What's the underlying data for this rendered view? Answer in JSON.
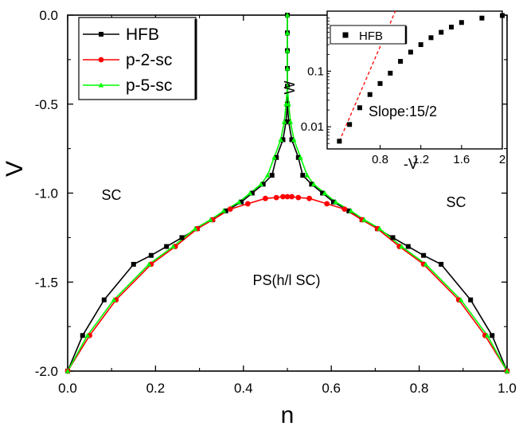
{
  "chart_data": [
    {
      "type": "line",
      "xlabel": "n",
      "ylabel": "V",
      "xlim": [
        0.0,
        1.0
      ],
      "ylim": [
        -2.0,
        0.0
      ],
      "x_ticks": [
        0.0,
        0.2,
        0.4,
        0.6,
        0.8,
        1.0
      ],
      "x_tick_labels": [
        "0.0",
        "0.2",
        "0.4",
        "0.6",
        "0.8",
        "1.0"
      ],
      "y_ticks": [
        0.0,
        -0.5,
        -1.0,
        -1.5,
        -2.0
      ],
      "y_tick_labels": [
        "0.0",
        "-0.5",
        "-1.0",
        "-1.5",
        "-2.0"
      ],
      "grid": false,
      "legend_position": "top-left",
      "annotations": [
        "SC",
        "SC",
        "PS(h/l SC)"
      ],
      "series": [
        {
          "name": "HFB",
          "color": "#000000",
          "marker": "square",
          "points": [
            [
              0.0,
              -2.0
            ],
            [
              0.034,
              -1.8
            ],
            [
              0.083,
              -1.6
            ],
            [
              0.15,
              -1.4
            ],
            [
              0.19,
              -1.35
            ],
            [
              0.225,
              -1.3
            ],
            [
              0.26,
              -1.25
            ],
            [
              0.295,
              -1.2
            ],
            [
              0.33,
              -1.15
            ],
            [
              0.36,
              -1.1
            ],
            [
              0.395,
              -1.05
            ],
            [
              0.42,
              -1.0
            ],
            [
              0.445,
              -0.95
            ],
            [
              0.465,
              -0.9
            ],
            [
              0.475,
              -0.8
            ],
            [
              0.49,
              -0.7
            ],
            [
              0.497,
              -0.6
            ],
            [
              0.5,
              -0.5
            ],
            [
              0.5,
              -0.4
            ],
            [
              0.5,
              -0.3
            ],
            [
              0.5,
              -0.2
            ],
            [
              0.5,
              -0.1
            ],
            [
              0.5,
              0.0
            ],
            [
              0.5,
              -0.1
            ],
            [
              0.5,
              -0.2
            ],
            [
              0.5,
              -0.3
            ],
            [
              0.5,
              -0.4
            ],
            [
              0.5,
              -0.5
            ],
            [
              0.503,
              -0.6
            ],
            [
              0.51,
              -0.7
            ],
            [
              0.525,
              -0.8
            ],
            [
              0.535,
              -0.9
            ],
            [
              0.555,
              -0.95
            ],
            [
              0.58,
              -1.0
            ],
            [
              0.605,
              -1.05
            ],
            [
              0.64,
              -1.1
            ],
            [
              0.67,
              -1.15
            ],
            [
              0.705,
              -1.2
            ],
            [
              0.74,
              -1.25
            ],
            [
              0.775,
              -1.3
            ],
            [
              0.81,
              -1.35
            ],
            [
              0.85,
              -1.4
            ],
            [
              0.917,
              -1.6
            ],
            [
              0.966,
              -1.8
            ],
            [
              1.0,
              -2.0
            ]
          ]
        },
        {
          "name": "p-2-sc",
          "color": "#ff0000",
          "marker": "circle",
          "points": [
            [
              0.0,
              -2.0
            ],
            [
              0.05,
              -1.8
            ],
            [
              0.11,
              -1.6
            ],
            [
              0.19,
              -1.4
            ],
            [
              0.245,
              -1.3
            ],
            [
              0.295,
              -1.2
            ],
            [
              0.33,
              -1.15
            ],
            [
              0.37,
              -1.09
            ],
            [
              0.41,
              -1.06
            ],
            [
              0.45,
              -1.03
            ],
            [
              0.475,
              -1.025
            ],
            [
              0.49,
              -1.02
            ],
            [
              0.5,
              -1.02
            ],
            [
              0.51,
              -1.02
            ],
            [
              0.525,
              -1.025
            ],
            [
              0.55,
              -1.03
            ],
            [
              0.59,
              -1.06
            ],
            [
              0.63,
              -1.09
            ],
            [
              0.67,
              -1.15
            ],
            [
              0.705,
              -1.2
            ],
            [
              0.755,
              -1.3
            ],
            [
              0.81,
              -1.4
            ],
            [
              0.89,
              -1.6
            ],
            [
              0.95,
              -1.8
            ],
            [
              1.0,
              -2.0
            ]
          ]
        },
        {
          "name": "p-5-sc",
          "color": "#00ff00",
          "marker": "triangle",
          "points": [
            [
              0.0,
              -2.0
            ],
            [
              0.045,
              -1.8
            ],
            [
              0.105,
              -1.6
            ],
            [
              0.185,
              -1.4
            ],
            [
              0.24,
              -1.3
            ],
            [
              0.29,
              -1.2
            ],
            [
              0.325,
              -1.15
            ],
            [
              0.355,
              -1.1
            ],
            [
              0.39,
              -1.05
            ],
            [
              0.415,
              -1.0
            ],
            [
              0.44,
              -0.95
            ],
            [
              0.455,
              -0.9
            ],
            [
              0.47,
              -0.8
            ],
            [
              0.485,
              -0.7
            ],
            [
              0.493,
              -0.6
            ],
            [
              0.497,
              -0.5
            ],
            [
              0.5,
              -0.4
            ],
            [
              0.5,
              -0.3
            ],
            [
              0.5,
              -0.2
            ],
            [
              0.5,
              -0.1
            ],
            [
              0.5,
              0.0
            ],
            [
              0.5,
              -0.1
            ],
            [
              0.5,
              -0.2
            ],
            [
              0.5,
              -0.3
            ],
            [
              0.5,
              -0.4
            ],
            [
              0.503,
              -0.5
            ],
            [
              0.507,
              -0.6
            ],
            [
              0.515,
              -0.7
            ],
            [
              0.53,
              -0.8
            ],
            [
              0.545,
              -0.9
            ],
            [
              0.56,
              -0.95
            ],
            [
              0.585,
              -1.0
            ],
            [
              0.61,
              -1.05
            ],
            [
              0.645,
              -1.1
            ],
            [
              0.675,
              -1.15
            ],
            [
              0.71,
              -1.2
            ],
            [
              0.76,
              -1.3
            ],
            [
              0.815,
              -1.4
            ],
            [
              0.895,
              -1.6
            ],
            [
              0.955,
              -1.8
            ],
            [
              1.0,
              -2.0
            ]
          ]
        }
      ]
    },
    {
      "type": "scatter",
      "xlabel": "-V",
      "ylabel": "W",
      "xlim": [
        0.28,
        2.0
      ],
      "ylim": [
        0.004,
        1.2
      ],
      "y_scale": "log",
      "x_ticks": [
        0.8,
        1.2,
        1.6,
        2.0
      ],
      "x_tick_labels": [
        "0.8",
        "1.2",
        "1.6",
        "2"
      ],
      "y_ticks": [
        0.01,
        0.1
      ],
      "y_tick_labels": [
        "0.01",
        "0.1"
      ],
      "legend_position": "top-left",
      "annotations": [
        "Slope:15/2"
      ],
      "series": [
        {
          "name": "HFB",
          "color": "#000000",
          "marker": "square",
          "points": [
            [
              0.4,
              0.0055
            ],
            [
              0.5,
              0.011
            ],
            [
              0.6,
              0.022
            ],
            [
              0.7,
              0.038
            ],
            [
              0.8,
              0.06
            ],
            [
              0.9,
              0.092
            ],
            [
              1.0,
              0.15
            ],
            [
              1.1,
              0.22
            ],
            [
              1.2,
              0.3
            ],
            [
              1.3,
              0.4
            ],
            [
              1.4,
              0.5
            ],
            [
              1.5,
              0.62
            ],
            [
              1.6,
              0.75
            ],
            [
              1.8,
              0.9
            ],
            [
              2.0,
              1.0
            ]
          ]
        },
        {
          "name": "fit",
          "color": "#ff0000",
          "dashed": true,
          "points": [
            [
              0.4,
              0.0055
            ],
            [
              0.95,
              1.2
            ]
          ]
        }
      ]
    }
  ]
}
